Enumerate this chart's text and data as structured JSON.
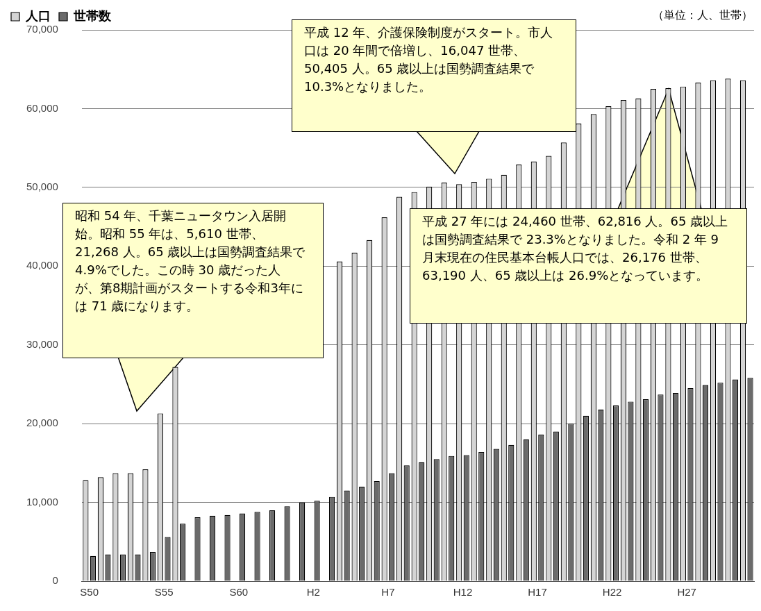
{
  "chart_data": {
    "type": "bar",
    "categories": [
      "S50",
      null,
      null,
      null,
      null,
      "S55",
      null,
      null,
      null,
      null,
      "S60",
      null,
      null,
      null,
      null,
      "H2",
      null,
      null,
      null,
      null,
      "H7",
      null,
      null,
      null,
      null,
      "H12",
      null,
      null,
      null,
      null,
      "H17",
      null,
      null,
      null,
      null,
      "H22",
      null,
      null,
      null,
      null,
      "H27",
      null,
      null,
      null,
      null
    ],
    "series": [
      {
        "name": "人口",
        "color": "#d4d4d4",
        "values": [
          12800,
          13200,
          13700,
          13700,
          14200,
          21300,
          27200,
          null,
          null,
          null,
          null,
          null,
          null,
          null,
          null,
          null,
          null,
          40600,
          41700,
          43300,
          46200,
          48800,
          49400,
          50100,
          50600,
          50400,
          50700,
          51100,
          51600,
          52900,
          53300,
          54000,
          55700,
          58100,
          59300,
          60300,
          61100,
          61300,
          62500,
          62600,
          62800,
          63300,
          63600,
          63800,
          63600
        ]
      },
      {
        "name": "世帯数",
        "color": "#6b6b6b",
        "values": [
          3200,
          3400,
          3400,
          3400,
          3700,
          5600,
          7300,
          8100,
          8300,
          8400,
          8600,
          8800,
          9000,
          9500,
          10000,
          10200,
          10700,
          11500,
          12000,
          12700,
          13700,
          14700,
          15100,
          15500,
          15900,
          16000,
          16400,
          16800,
          17300,
          18000,
          18600,
          19000,
          20000,
          21000,
          21800,
          22300,
          22800,
          23100,
          23700,
          23900,
          24500,
          24900,
          25200,
          25600,
          25800
        ]
      }
    ],
    "ylim": [
      0,
      70000
    ],
    "yticks": [
      0,
      {
        "value": 10000,
        "label": "10,000"
      },
      {
        "value": 20000,
        "label": "20,000"
      },
      {
        "value": 30000,
        "label": "30,000"
      },
      {
        "value": 40000,
        "label": "40,000"
      },
      {
        "value": 50000,
        "label": "50,000"
      },
      {
        "value": 60000,
        "label": "60,000"
      },
      {
        "value": 70000,
        "label": "70,000"
      }
    ],
    "grid": "y",
    "legend": "top left",
    "annotations": [
      "平成 12 年、介護保険制度がスタート。市人口は 20 年間で倍増し、16,047 世帯、50,405 人。65 歳以上は国勢調査結果で 10.3%となりました。",
      "昭和 54 年、千葉ニュータウン入居開始。昭和 55 年は、5,610 世帯、21,268 人。65 歳以上は国勢調査結果で 4.9%でした。この時 30 歳だった人が、第8期計画がスタートする令和3年には 71 歳になります。",
      "平成 27 年には 24,460 世帯、62,816 人。65 歳以上は国勢調査結果で 23.3%となりました。令和 2 年 9 月末現在の住民基本台帳人口では、26,176 世帯、63,190 人、65 歳以上は 26.9%となっています。",
      "（単位：人、世帯）"
    ]
  }
}
